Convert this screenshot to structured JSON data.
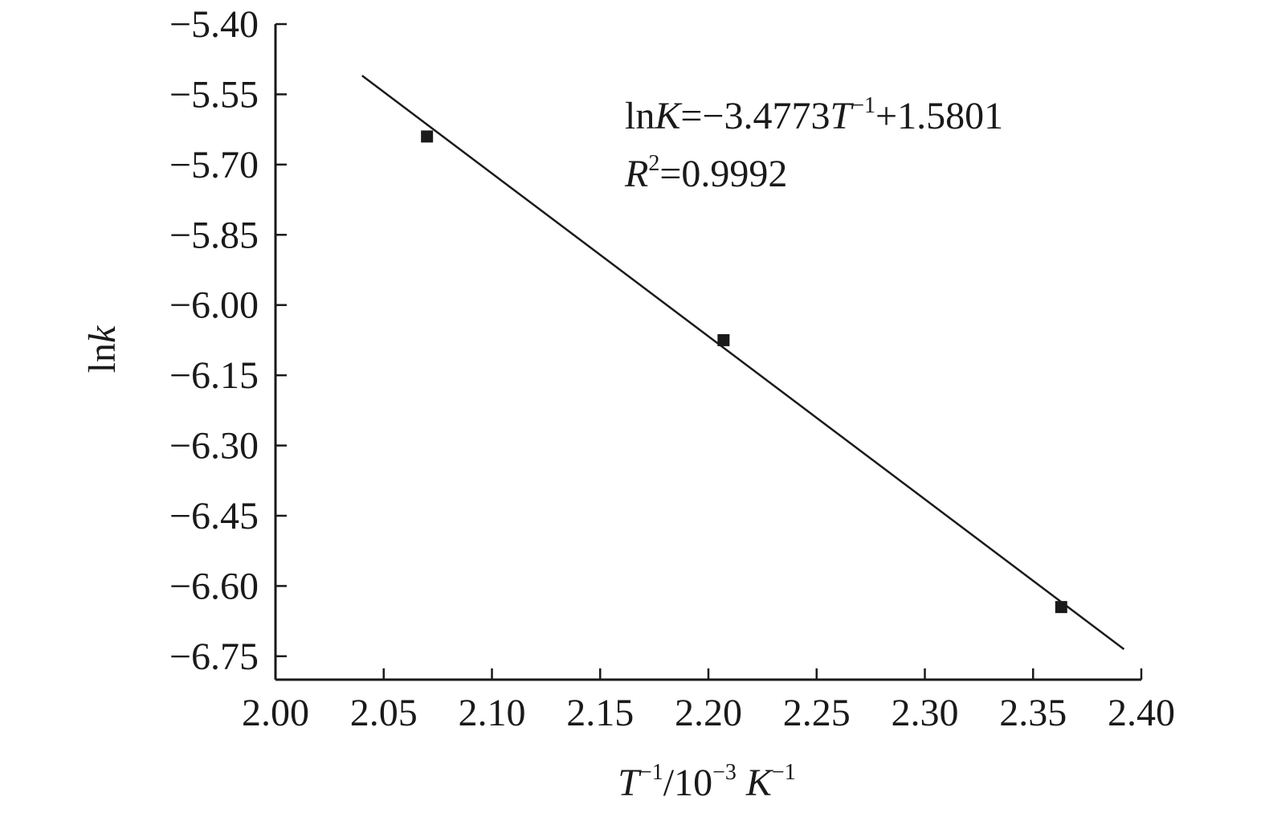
{
  "chart_data": {
    "type": "scatter",
    "x_ticks": [
      "2.00",
      "2.05",
      "2.10",
      "2.15",
      "2.20",
      "2.25",
      "2.30",
      "2.35",
      "2.40"
    ],
    "y_ticks": [
      "−5.40",
      "−5.55",
      "−5.70",
      "−5.85",
      "−6.00",
      "−6.15",
      "−6.30",
      "−6.45",
      "−6.60",
      "−6.75"
    ],
    "xlim": [
      2.0,
      2.4
    ],
    "ylim": [
      -6.8,
      -5.4
    ],
    "xlabel": {
      "main": "T",
      "exp1": "−1",
      "unit": "/10",
      "exp2": "−3",
      "unit2": " K",
      "exp3": "−1"
    },
    "ylabel": {
      "prefix": "ln",
      "var": "k"
    },
    "points": [
      {
        "x": 2.07,
        "y": -5.64
      },
      {
        "x": 2.207,
        "y": -6.075
      },
      {
        "x": 2.363,
        "y": -6.645
      }
    ],
    "fit_line": {
      "x_start": 2.04,
      "y_start": -5.51,
      "x_end": 2.392,
      "y_end": -6.735
    },
    "annotation": {
      "line1": {
        "prefix": "ln",
        "var": "K",
        "eq": "=−3.4773",
        "var2": "T",
        "exp": "−1",
        "rest": "+1.5801"
      },
      "line2": {
        "var": "R",
        "exp": "2",
        "rest": "=0.9992"
      }
    },
    "grid": false,
    "legend": "none",
    "colors": {
      "axis": "#1a1a1a",
      "marker": "#1a1a1a",
      "line": "#1a1a1a"
    }
  }
}
